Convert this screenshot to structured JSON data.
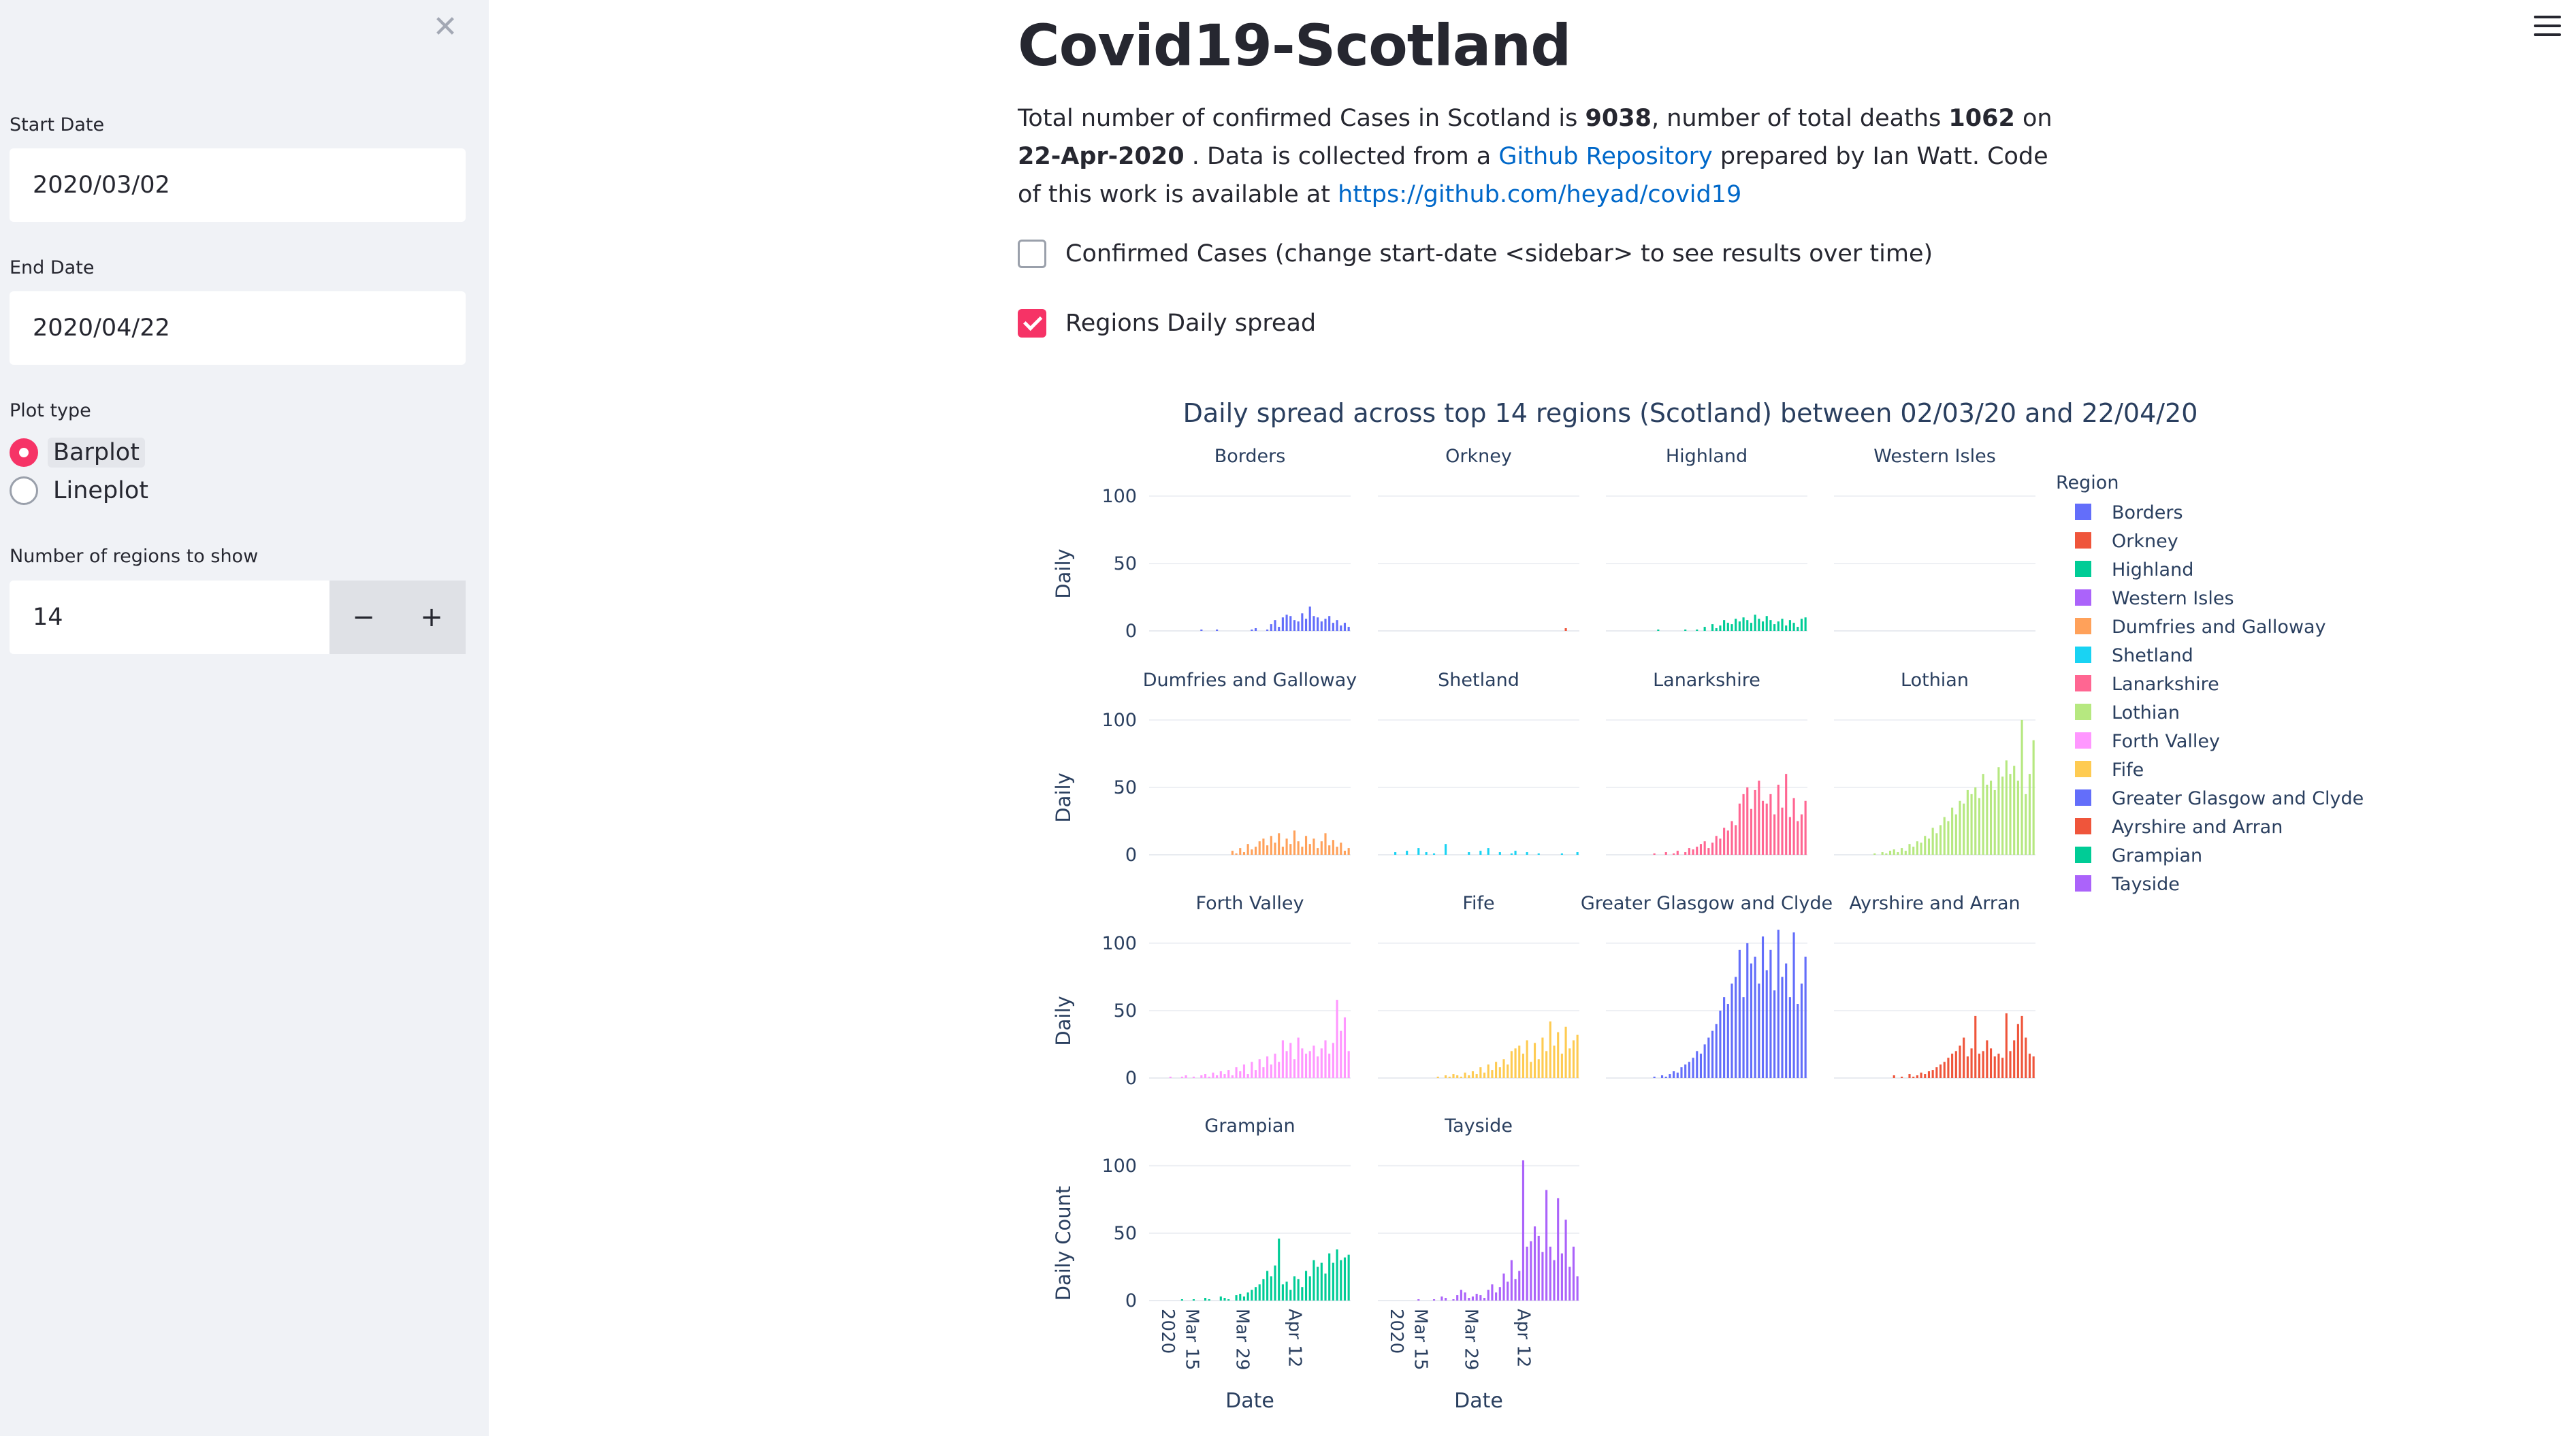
{
  "sidebar": {
    "close_icon": "close-icon",
    "start_date_label": "Start Date",
    "start_date_value": "2020/03/02",
    "end_date_label": "End Date",
    "end_date_value": "2020/04/22",
    "plot_type_label": "Plot type",
    "plot_type_options": [
      "Barplot",
      "Lineplot"
    ],
    "plot_type_selected": "Barplot",
    "regions_label": "Number of regions to show",
    "regions_value": "14",
    "decrement_label": "−",
    "increment_label": "+"
  },
  "main": {
    "title": "Covid19-Scotland",
    "summary": {
      "t1": "Total number of confirmed Cases in Scotland is ",
      "cases": "9038",
      "t2": ", number of total deaths ",
      "deaths": "1062",
      "t3": " on ",
      "date": "22-Apr-2020",
      "t4": " . Data is collected from a ",
      "repo_link": "Github Repository",
      "t5": " prepared by Ian Watt. Code of this work is available at ",
      "code_link": "https://github.com/heyad/covid19"
    },
    "checkbox_confirmed": {
      "label": "Confirmed Cases (change start-date <sidebar> to see results over time)",
      "checked": false
    },
    "checkbox_regions": {
      "label": "Regions Daily spread",
      "checked": true
    },
    "menu_icon": "hamburger-menu-icon"
  },
  "chart_data": {
    "type": "bar",
    "title": "Daily spread across top 14 regions (Scotland) between 02/03/20 and 22/04/20",
    "ylabels": [
      "Daily",
      "Daily",
      "Daily",
      "Daily Count"
    ],
    "xlabel": "Date",
    "x_ticks": [
      "2020",
      "Mar 15",
      "Mar 29",
      "Apr 12"
    ],
    "y_ticks": [
      0,
      50,
      100
    ],
    "ylim": [
      0,
      110
    ],
    "x_start": "2020-03-02",
    "x_end": "2020-04-22",
    "legend_title": "Region",
    "legend_position": "right",
    "series": [
      {
        "name": "Borders",
        "color": "#636efa",
        "values": [
          0,
          0,
          0,
          0,
          0,
          0,
          0,
          0,
          0,
          0,
          0,
          0,
          0,
          1,
          0,
          0,
          0,
          1,
          0,
          0,
          0,
          0,
          0,
          0,
          0,
          0,
          1,
          2,
          0,
          0,
          1,
          5,
          8,
          3,
          10,
          12,
          11,
          8,
          7,
          13,
          9,
          18,
          11,
          10,
          7,
          9,
          11,
          6,
          8,
          4,
          6,
          3
        ]
      },
      {
        "name": "Orkney",
        "color": "#ef553b",
        "values": [
          0,
          0,
          0,
          0,
          0,
          0,
          0,
          0,
          0,
          0,
          0,
          0,
          0,
          0,
          0,
          0,
          0,
          0,
          0,
          0,
          0,
          0,
          0,
          0,
          0,
          0,
          0,
          0,
          0,
          0,
          0,
          0,
          0,
          0,
          0,
          0,
          0,
          0,
          0,
          0,
          0,
          0,
          0,
          0,
          0,
          0,
          0,
          0,
          2,
          0,
          0,
          0
        ]
      },
      {
        "name": "Highland",
        "color": "#00cc96",
        "values": [
          0,
          0,
          0,
          0,
          0,
          0,
          0,
          0,
          0,
          0,
          0,
          0,
          0,
          1,
          0,
          0,
          0,
          0,
          0,
          0,
          1,
          0,
          0,
          1,
          0,
          3,
          0,
          5,
          2,
          4,
          8,
          6,
          5,
          9,
          7,
          10,
          8,
          6,
          12,
          9,
          7,
          11,
          8,
          5,
          7,
          9,
          4,
          8,
          6,
          3,
          9,
          10
        ]
      },
      {
        "name": "Western Isles",
        "color": "#ab63fa",
        "values": [
          0,
          0,
          0,
          0,
          0,
          0,
          0,
          0,
          0,
          0,
          0,
          0,
          0,
          0,
          0,
          0,
          0,
          0,
          0,
          0,
          0,
          0,
          0,
          0,
          0,
          0,
          0,
          0,
          0,
          0,
          0,
          0,
          0,
          0,
          0,
          0,
          0,
          0,
          0,
          0,
          0,
          0,
          0,
          0,
          0,
          0,
          0,
          0,
          0,
          0,
          0,
          0
        ]
      },
      {
        "name": "Dumfries and Galloway",
        "color": "#ffa15a",
        "values": [
          0,
          0,
          0,
          0,
          0,
          0,
          0,
          0,
          0,
          0,
          0,
          0,
          0,
          0,
          0,
          0,
          0,
          0,
          0,
          0,
          0,
          3,
          1,
          5,
          2,
          8,
          4,
          6,
          10,
          12,
          7,
          14,
          9,
          16,
          6,
          12,
          8,
          18,
          10,
          6,
          14,
          8,
          12,
          5,
          10,
          16,
          7,
          11,
          6,
          9,
          3,
          5
        ]
      },
      {
        "name": "Shetland",
        "color": "#19d3f3",
        "values": [
          0,
          0,
          0,
          0,
          2,
          0,
          0,
          3,
          0,
          0,
          5,
          0,
          2,
          0,
          1,
          0,
          0,
          8,
          0,
          0,
          0,
          0,
          0,
          2,
          0,
          0,
          3,
          0,
          5,
          0,
          0,
          2,
          0,
          0,
          1,
          3,
          0,
          0,
          2,
          0,
          0,
          1,
          0,
          0,
          0,
          0,
          0,
          1,
          0,
          0,
          0,
          2
        ]
      },
      {
        "name": "Lanarkshire",
        "color": "#ff6692",
        "values": [
          0,
          0,
          0,
          0,
          0,
          0,
          0,
          0,
          0,
          0,
          0,
          0,
          1,
          0,
          0,
          2,
          0,
          1,
          3,
          0,
          2,
          5,
          4,
          6,
          8,
          10,
          5,
          9,
          14,
          12,
          20,
          18,
          25,
          22,
          38,
          45,
          50,
          34,
          48,
          55,
          40,
          38,
          45,
          30,
          52,
          35,
          60,
          28,
          42,
          25,
          30,
          40
        ]
      },
      {
        "name": "Lothian",
        "color": "#b6e880",
        "values": [
          0,
          0,
          0,
          0,
          0,
          0,
          0,
          0,
          0,
          0,
          1,
          0,
          2,
          1,
          3,
          4,
          2,
          5,
          3,
          8,
          6,
          10,
          9,
          14,
          12,
          20,
          16,
          22,
          28,
          25,
          35,
          30,
          40,
          38,
          48,
          45,
          50,
          42,
          60,
          52,
          55,
          48,
          65,
          58,
          70,
          60,
          66,
          55,
          100,
          45,
          60,
          85
        ]
      },
      {
        "name": "Forth Valley",
        "color": "#ff97ff",
        "values": [
          0,
          0,
          0,
          0,
          0,
          1,
          0,
          0,
          1,
          2,
          0,
          1,
          0,
          2,
          3,
          1,
          4,
          2,
          5,
          3,
          6,
          2,
          8,
          5,
          10,
          3,
          12,
          6,
          14,
          8,
          16,
          10,
          18,
          12,
          28,
          20,
          26,
          14,
          30,
          22,
          18,
          20,
          24,
          16,
          22,
          28,
          18,
          26,
          58,
          35,
          45,
          20
        ]
      },
      {
        "name": "Fife",
        "color": "#fecb52",
        "values": [
          0,
          0,
          0,
          0,
          0,
          0,
          0,
          0,
          0,
          0,
          0,
          0,
          0,
          0,
          0,
          1,
          0,
          2,
          1,
          3,
          2,
          1,
          4,
          2,
          5,
          3,
          8,
          4,
          10,
          6,
          12,
          8,
          14,
          10,
          20,
          22,
          24,
          18,
          28,
          12,
          26,
          14,
          30,
          20,
          42,
          24,
          34,
          18,
          38,
          22,
          28,
          32
        ]
      },
      {
        "name": "Greater Glasgow and Clyde",
        "color": "#636efa",
        "values": [
          0,
          0,
          0,
          0,
          0,
          0,
          0,
          0,
          0,
          0,
          0,
          0,
          1,
          0,
          2,
          1,
          3,
          5,
          4,
          8,
          10,
          12,
          15,
          20,
          18,
          25,
          30,
          35,
          40,
          50,
          60,
          55,
          70,
          75,
          95,
          60,
          100,
          85,
          90,
          70,
          105,
          80,
          95,
          65,
          110,
          75,
          85,
          60,
          108,
          55,
          70,
          90
        ]
      },
      {
        "name": "Ayrshire and Arran",
        "color": "#ef553b",
        "values": [
          0,
          0,
          0,
          0,
          0,
          0,
          0,
          0,
          0,
          0,
          0,
          0,
          0,
          0,
          0,
          2,
          0,
          1,
          0,
          3,
          1,
          2,
          4,
          3,
          5,
          6,
          8,
          10,
          12,
          15,
          18,
          20,
          24,
          30,
          16,
          22,
          46,
          18,
          20,
          28,
          22,
          16,
          18,
          15,
          48,
          20,
          28,
          40,
          46,
          30,
          18,
          16
        ]
      },
      {
        "name": "Grampian",
        "color": "#00cc96",
        "values": [
          0,
          0,
          0,
          0,
          0,
          0,
          0,
          0,
          1,
          0,
          0,
          1,
          0,
          0,
          2,
          1,
          0,
          0,
          3,
          2,
          1,
          0,
          4,
          5,
          3,
          6,
          8,
          10,
          12,
          16,
          22,
          18,
          26,
          46,
          12,
          14,
          8,
          18,
          16,
          10,
          22,
          18,
          30,
          25,
          28,
          20,
          35,
          28,
          38,
          30,
          32,
          34
        ]
      },
      {
        "name": "Tayside",
        "color": "#ab63fa",
        "values": [
          0,
          0,
          0,
          0,
          0,
          0,
          0,
          0,
          0,
          0,
          1,
          0,
          0,
          0,
          1,
          0,
          3,
          2,
          0,
          1,
          4,
          8,
          6,
          2,
          3,
          5,
          4,
          2,
          8,
          12,
          6,
          10,
          20,
          14,
          30,
          16,
          22,
          104,
          40,
          44,
          55,
          48,
          36,
          82,
          40,
          30,
          76,
          35,
          60,
          25,
          40,
          18
        ]
      }
    ]
  }
}
